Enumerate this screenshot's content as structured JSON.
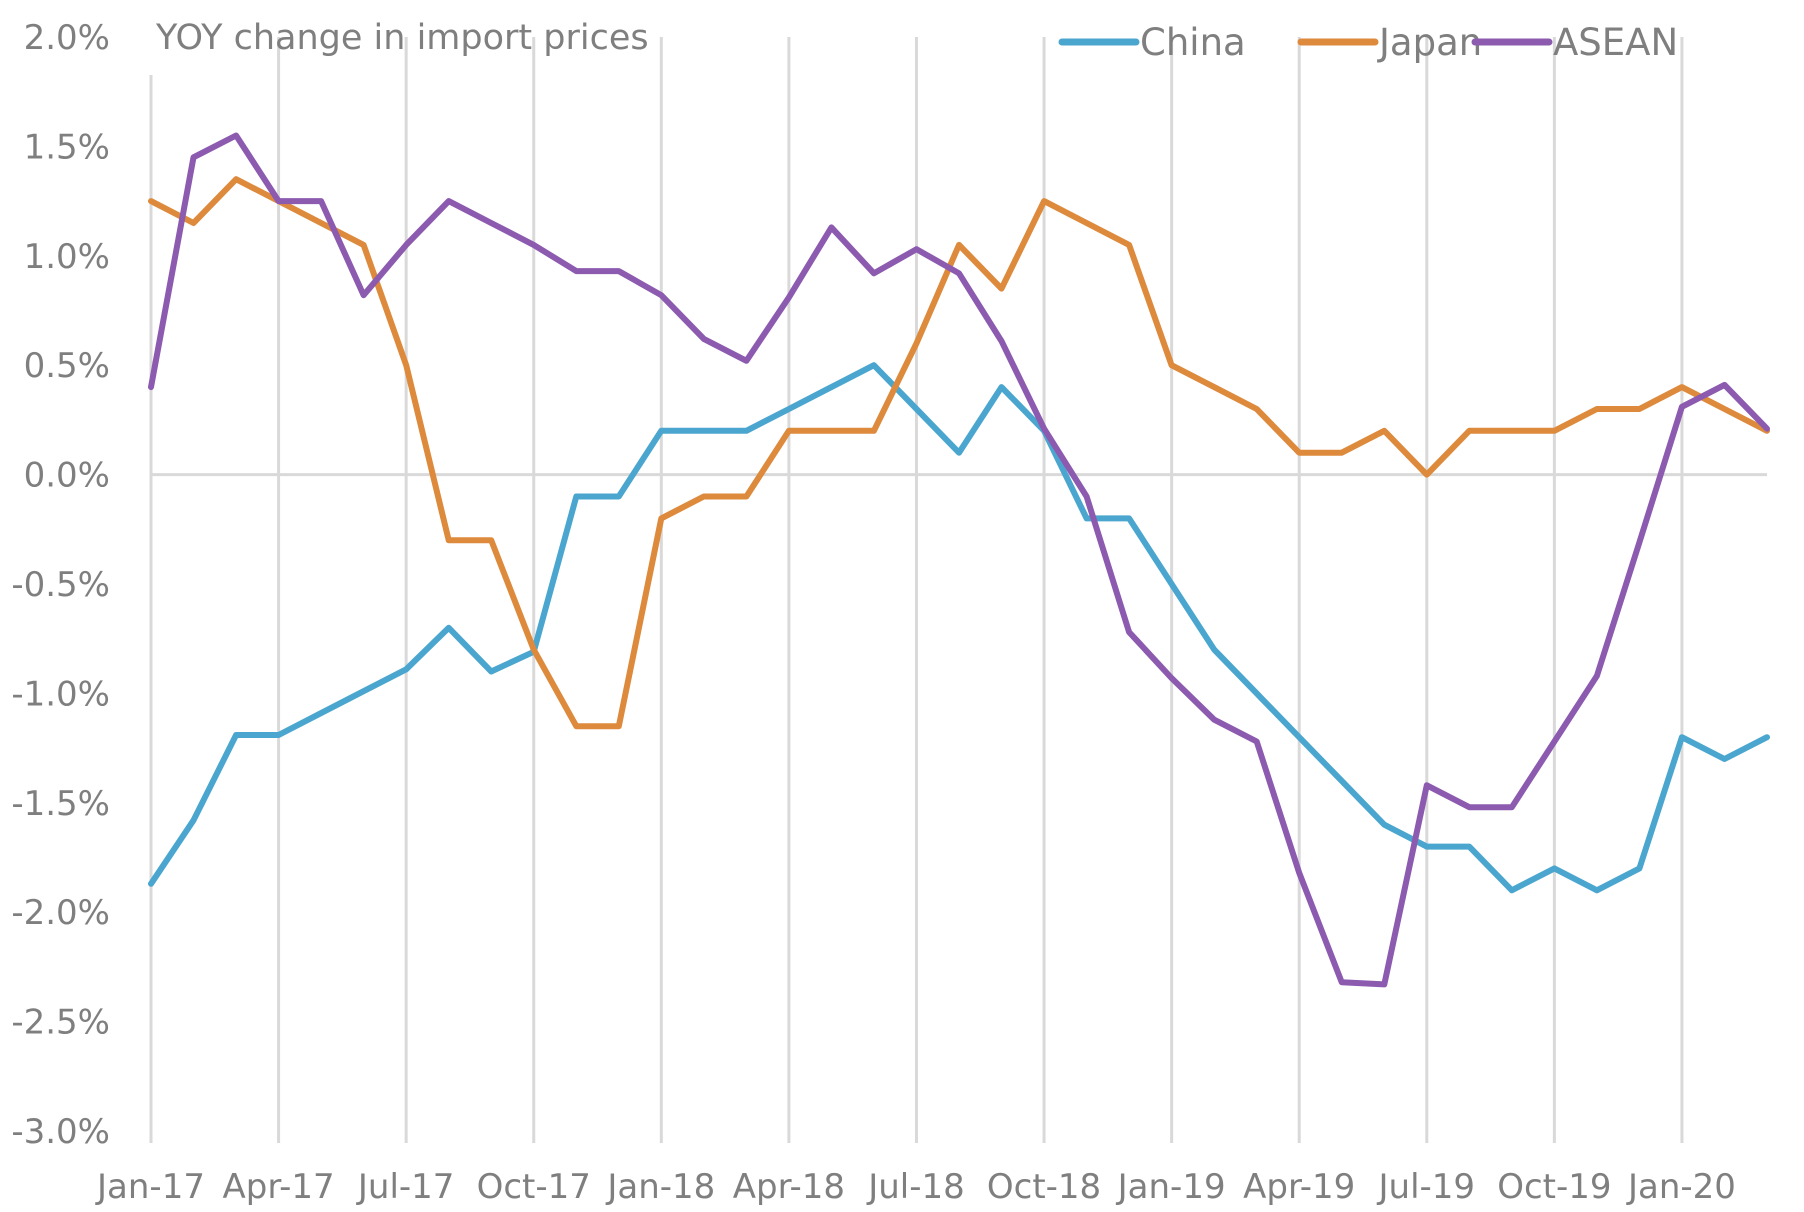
{
  "chart_data": {
    "type": "line",
    "title": "YOY change in import prices",
    "xlabel": "",
    "ylabel": "",
    "ylim": [
      -3.0,
      2.0
    ],
    "y_ticks": [
      "2.0%",
      "1.5%",
      "1.0%",
      "0.5%",
      "0.0%",
      "-0.5%",
      "-1.0%",
      "-1.5%",
      "-2.0%",
      "-2.5%",
      "-3.0%"
    ],
    "y_tick_values": [
      2.0,
      1.5,
      1.0,
      0.5,
      0.0,
      -0.5,
      -1.0,
      -1.5,
      -2.0,
      -2.5,
      -3.0
    ],
    "x_tick_labels": [
      "Jan-17",
      "Apr-17",
      "Jul-17",
      "Oct-17",
      "Jan-18",
      "Apr-18",
      "Jul-18",
      "Oct-18",
      "Jan-19",
      "Apr-19",
      "Jul-19",
      "Oct-19",
      "Jan-20"
    ],
    "x_tick_month_index": [
      0,
      3,
      6,
      9,
      12,
      15,
      18,
      21,
      24,
      27,
      30,
      33,
      36
    ],
    "x_months": [
      "Jan-17",
      "Feb-17",
      "Mar-17",
      "Apr-17",
      "May-17",
      "Jun-17",
      "Jul-17",
      "Aug-17",
      "Sep-17",
      "Oct-17",
      "Nov-17",
      "Dec-17",
      "Jan-18",
      "Feb-18",
      "Mar-18",
      "Apr-18",
      "May-18",
      "Jun-18",
      "Jul-18",
      "Aug-18",
      "Sep-18",
      "Oct-18",
      "Nov-18",
      "Dec-18",
      "Jan-19",
      "Feb-19",
      "Mar-19",
      "Apr-19",
      "May-19",
      "Jun-19",
      "Jul-19",
      "Aug-19",
      "Sep-19",
      "Oct-19",
      "Nov-19",
      "Dec-19",
      "Jan-20",
      "Feb-20",
      "Mar-20"
    ],
    "grid": "vertical at x ticks, zero line",
    "legend_position": "top-right",
    "series": [
      {
        "name": "China",
        "color": "#4ba6cf",
        "values": [
          -1.87,
          -1.58,
          -1.19,
          -1.19,
          -1.09,
          -0.99,
          -0.89,
          -0.7,
          -0.9,
          -0.81,
          -0.1,
          -0.1,
          0.2,
          0.2,
          0.2,
          0.3,
          0.4,
          0.5,
          0.3,
          0.1,
          0.4,
          0.2,
          -0.2,
          -0.2,
          -0.5,
          -0.8,
          -1.0,
          -1.2,
          -1.4,
          -1.6,
          -1.7,
          -1.7,
          -1.9,
          -1.8,
          -1.9,
          -1.8,
          -1.2,
          -1.3,
          -1.2
        ]
      },
      {
        "name": "Japan",
        "color": "#dd8a3c",
        "values": [
          1.25,
          1.15,
          1.35,
          1.25,
          1.15,
          1.05,
          0.5,
          -0.3,
          -0.3,
          -0.8,
          -1.15,
          -1.15,
          -0.2,
          -0.1,
          -0.1,
          0.2,
          0.2,
          0.2,
          0.6,
          1.05,
          0.85,
          1.25,
          1.15,
          1.05,
          0.5,
          0.4,
          0.3,
          0.1,
          0.1,
          0.2,
          0.0,
          0.2,
          0.2,
          0.2,
          0.3,
          0.3,
          0.4,
          0.3,
          0.2
        ]
      },
      {
        "name": "ASEAN",
        "color": "#8c5bb0",
        "values": [
          0.4,
          1.45,
          1.55,
          1.25,
          1.25,
          0.82,
          1.05,
          1.25,
          1.15,
          1.05,
          0.93,
          0.93,
          0.82,
          0.62,
          0.52,
          0.81,
          1.13,
          0.92,
          1.03,
          0.92,
          0.61,
          0.21,
          -0.1,
          -0.72,
          -0.93,
          -1.12,
          -1.22,
          -1.82,
          -2.32,
          -2.33,
          -1.42,
          -1.52,
          -1.52,
          -1.22,
          -0.92,
          -0.31,
          0.31,
          0.41,
          0.21
        ]
      }
    ]
  }
}
